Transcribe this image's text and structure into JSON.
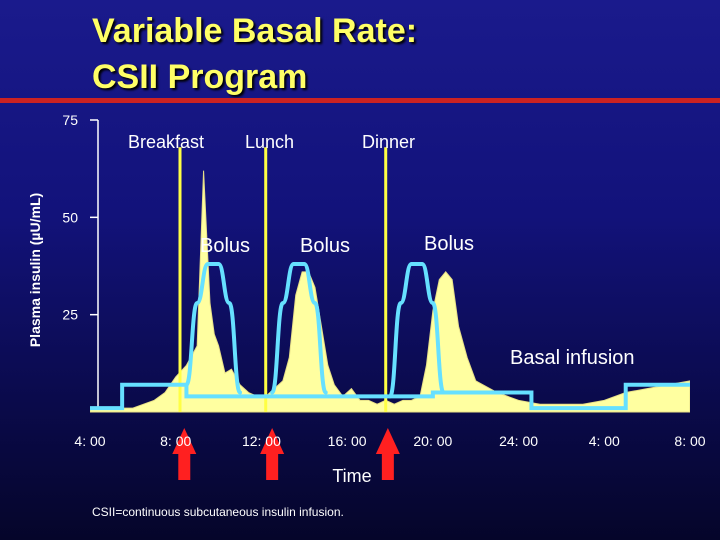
{
  "slide": {
    "title_line1": "Variable Basal Rate:",
    "title_line2": "CSII Program",
    "footnote": "CSII=continuous subcutaneous insulin infusion."
  },
  "colors": {
    "background": "#12127a",
    "title": "#ffff66",
    "rule": "#cc2222",
    "plasma_fill": "#ffffa0",
    "basal_bolus_line": "#66e0ff",
    "bolus_marker": "#ffff44",
    "meal_arrow": "#ff2020"
  },
  "chart_data": {
    "type": "area",
    "title": "",
    "xlabel": "Time",
    "ylabel": "Plasma insulin (µU/mL)",
    "x_tick_labels": [
      "4: 00",
      "8: 00",
      "12: 00",
      "16: 00",
      "20: 00",
      "24: 00",
      "4: 00",
      "8: 00"
    ],
    "x_tick_hours": [
      4,
      8,
      12,
      16,
      20,
      24,
      28,
      32
    ],
    "yticks": [
      25,
      50,
      75
    ],
    "ylim": [
      0,
      75
    ],
    "xlim": [
      4,
      32
    ],
    "grid": false,
    "series": [
      {
        "kind": "area",
        "x": [
          4,
          5,
          6,
          6.5,
          7,
          7.5,
          8,
          8.5,
          9,
          9.3,
          9.6,
          9.8,
          10,
          10.3,
          10.6,
          11,
          11.4,
          11.8,
          12.2,
          12.6,
          13,
          13.3,
          13.6,
          13.9,
          14.2,
          14.5,
          14.8,
          15.1,
          15.4,
          15.8,
          16.2,
          16.6,
          17,
          17.4,
          17.8,
          18.2,
          18.6,
          19,
          19.4,
          19.7,
          20,
          20.3,
          20.6,
          20.9,
          21.2,
          21.6,
          22,
          23,
          24,
          25,
          26,
          27,
          28,
          29,
          30,
          31,
          32
        ],
        "y": [
          1,
          1,
          1,
          2,
          3,
          5,
          9,
          12,
          17,
          62,
          28,
          20,
          17,
          10,
          11,
          7,
          5,
          4,
          4,
          6,
          8,
          14,
          30,
          36,
          36,
          32,
          22,
          12,
          7,
          4,
          6,
          3,
          3,
          2,
          3,
          2,
          3,
          3,
          4,
          12,
          26,
          34,
          36,
          34,
          22,
          14,
          8,
          5,
          3,
          2,
          2,
          2,
          3,
          5,
          6,
          7,
          8
        ]
      },
      {
        "kind": "basal",
        "x": [
          4,
          5.5,
          5.5,
          8.5,
          8.5,
          20,
          20,
          24.6,
          24.6,
          29,
          29,
          32
        ],
        "y": [
          1,
          1,
          7,
          7,
          4,
          4,
          5,
          5,
          1,
          1,
          7,
          7
        ]
      },
      {
        "kind": "bolus",
        "x": [
          8.5,
          9,
          9.5,
          10,
          10.5,
          11
        ],
        "y": [
          7,
          28,
          38,
          38,
          28,
          5
        ]
      },
      {
        "kind": "bolus",
        "x": [
          12.5,
          13,
          13.5,
          14,
          14.5,
          15
        ],
        "y": [
          5,
          28,
          38,
          38,
          28,
          5
        ]
      },
      {
        "kind": "bolus",
        "x": [
          18,
          18.5,
          19,
          19.5,
          20,
          20.5
        ],
        "y": [
          4,
          28,
          38,
          38,
          28,
          5
        ]
      }
    ],
    "bolus_markers": [
      {
        "x": 8.2,
        "y_top": 68
      },
      {
        "x": 12.2,
        "y_top": 68
      },
      {
        "x": 17.8,
        "y_top": 68
      }
    ],
    "meal_arrows": [
      {
        "x": 8.4
      },
      {
        "x": 12.5
      },
      {
        "x": 17.9
      }
    ],
    "annotations": {
      "breakfast": "Breakfast",
      "lunch": "Lunch",
      "dinner": "Dinner",
      "bolus_1": "Bolus",
      "bolus_2": "Bolus",
      "bolus_3": "Bolus",
      "basal": "Basal infusion"
    }
  }
}
